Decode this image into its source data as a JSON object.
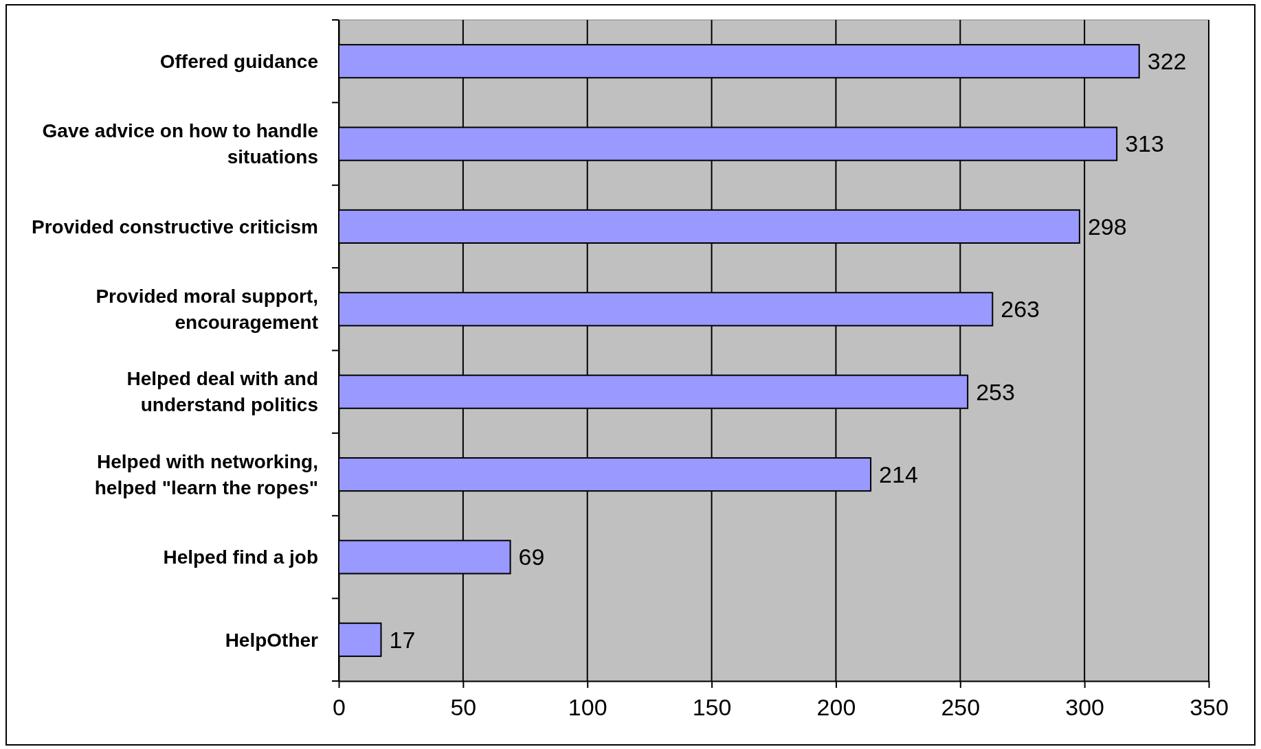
{
  "chart_data": {
    "type": "bar",
    "orientation": "horizontal",
    "categories": [
      "Offered guidance",
      "Gave advice on how to handle situations",
      "Provided constructive criticism",
      "Provided moral support, encouragement",
      "Helped deal with and understand politics",
      "Helped with networking, helped \"learn the ropes\"",
      "Helped find a job",
      "HelpOther"
    ],
    "values": [
      322,
      313,
      298,
      263,
      253,
      214,
      69,
      17
    ],
    "color": "#9999ff",
    "xlim": [
      0,
      350
    ],
    "xticks": [
      0,
      50,
      100,
      150,
      200,
      250,
      300,
      350
    ],
    "grid": "x",
    "data_labels": true
  }
}
